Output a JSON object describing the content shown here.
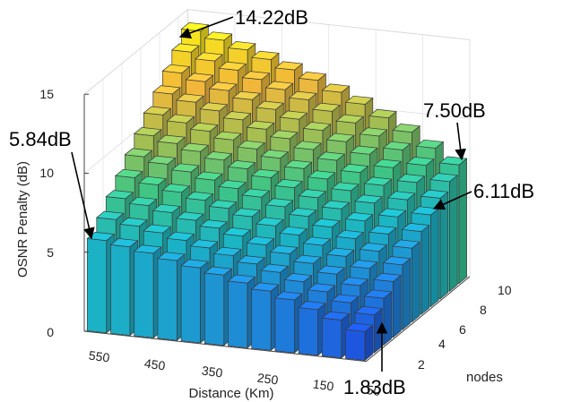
{
  "chart_data": {
    "type": "bar3d",
    "title": "",
    "zlabel": "OSNR Penalty (dB)",
    "xlabel": "Distance (Km)",
    "ylabel": "nodes",
    "zlim": [
      0,
      15
    ],
    "z_ticks": [
      "0",
      "5",
      "10",
      "15"
    ],
    "distance_ticks": [
      "550",
      "450",
      "350",
      "250",
      "150",
      "50"
    ],
    "node_ticks": [
      "2",
      "4",
      "6",
      "8",
      "10"
    ],
    "distances": [
      600,
      550,
      500,
      450,
      400,
      350,
      300,
      250,
      200,
      150,
      100,
      50
    ],
    "nodes": [
      1,
      2,
      3,
      4,
      5,
      6,
      7,
      8,
      9,
      10,
      11
    ],
    "front_row_values": [
      5.84,
      5.6,
      5.35,
      5.05,
      4.75,
      4.45,
      4.1,
      3.75,
      3.35,
      2.9,
      2.4,
      1.83
    ],
    "back_row_values": [
      14.22,
      13.8,
      13.35,
      12.9,
      12.4,
      11.9,
      11.3,
      10.7,
      10.0,
      9.25,
      8.4,
      7.5
    ],
    "grid": true,
    "colormap": [
      "#1d57e0",
      "#1f88d8",
      "#1bb5c4",
      "#3fc585",
      "#a6be50",
      "#f2b73a",
      "#f6e21e"
    ],
    "annotations": [
      {
        "label": "14.22dB",
        "target": "back-row, 600 Km"
      },
      {
        "label": "7.50dB",
        "target": "back-row, 50 Km"
      },
      {
        "label": "5.84dB",
        "target": "front-row, 600 Km"
      },
      {
        "label": "6.11dB",
        "target": "row 8, 50 Km"
      },
      {
        "label": "1.83dB",
        "target": "front-row, 50 Km"
      }
    ]
  }
}
